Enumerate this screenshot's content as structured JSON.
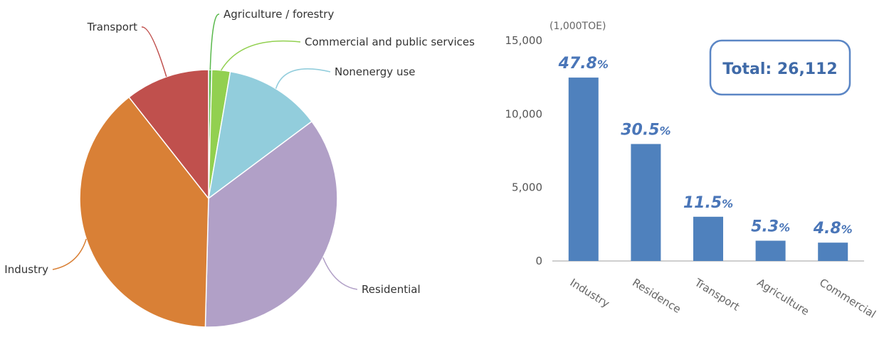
{
  "chart_data": [
    {
      "type": "pie",
      "title": "",
      "slices": [
        {
          "label": "Agriculture / forestry",
          "value": 0.4,
          "color": "#5ab94c"
        },
        {
          "label": "Commercial and public services",
          "value": 2.3,
          "color": "#92d050"
        },
        {
          "label": "Nonenergy use",
          "value": 12.1,
          "color": "#92cddc"
        },
        {
          "label": "Residential",
          "value": 35.6,
          "color": "#b1a0c7"
        },
        {
          "label": "Industry",
          "value": 39.0,
          "color": "#d98036"
        },
        {
          "label": "Transport",
          "value": 10.6,
          "color": "#c0504d"
        }
      ]
    },
    {
      "type": "bar",
      "title": "",
      "unit_label": "(1,000TOE)",
      "categories": [
        "Industry",
        "Residence",
        "Transport",
        "Agriculture",
        "Commercial"
      ],
      "values": [
        12480,
        7960,
        3010,
        1380,
        1250
      ],
      "value_labels": [
        {
          "num": "47.8",
          "sign": "%"
        },
        {
          "num": "30.5",
          "sign": "%"
        },
        {
          "num": "11.5",
          "sign": "%"
        },
        {
          "num": "5.3",
          "sign": "%"
        },
        {
          "num": "4.8",
          "sign": "%"
        }
      ],
      "ylim": [
        0,
        15000
      ],
      "yticks": [
        0,
        5000,
        10000,
        15000
      ],
      "ytick_labels": [
        "0",
        "5,000",
        "10,000",
        "15,000"
      ],
      "bar_color": "#4f81bd",
      "total_label": "Total: 26,112",
      "total_color": "#3f6aa8"
    }
  ]
}
